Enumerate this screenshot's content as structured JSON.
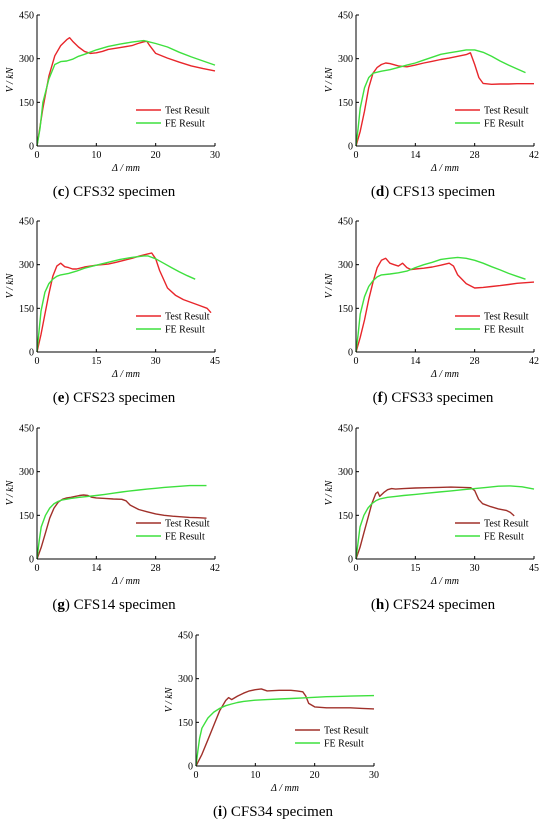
{
  "colors": {
    "test_red": "#e8262b",
    "test_brown": "#a0302a",
    "fe": "#3ee03e",
    "axis": "#000000"
  },
  "chart_data": [
    {
      "type": "line",
      "caption_letter": "c",
      "caption_text": " CFS32 specimen",
      "xlabel": "Δ / mm",
      "ylabel": "V / kN",
      "xlim": [
        0,
        30
      ],
      "ylim": [
        0,
        450
      ],
      "xticks": [
        0,
        10,
        20,
        30
      ],
      "yticks": [
        0,
        150,
        300,
        450
      ],
      "test_color": "test_red",
      "series": [
        {
          "name": "Test Result",
          "color_key": "test_red",
          "x": [
            0,
            1,
            2,
            3,
            4,
            5,
            5.5,
            6,
            7,
            8,
            9,
            10,
            11,
            12,
            14,
            16,
            17,
            18,
            18.5,
            19,
            20,
            22,
            24,
            26,
            28,
            30
          ],
          "y": [
            0,
            130,
            240,
            310,
            345,
            365,
            372,
            360,
            340,
            325,
            318,
            320,
            325,
            332,
            338,
            345,
            352,
            358,
            360,
            345,
            318,
            302,
            288,
            275,
            266,
            258
          ]
        },
        {
          "name": "FE Result",
          "color_key": "fe",
          "x": [
            0,
            0.5,
            1,
            2,
            3,
            4,
            5,
            6,
            7,
            8,
            10,
            12,
            14,
            16,
            18,
            20,
            22,
            24,
            26,
            28,
            30
          ],
          "y": [
            0,
            60,
            150,
            230,
            280,
            290,
            292,
            298,
            308,
            315,
            330,
            342,
            350,
            357,
            362,
            352,
            340,
            322,
            306,
            292,
            278
          ]
        }
      ]
    },
    {
      "type": "line",
      "caption_letter": "d",
      "caption_text": " CFS13 specimen",
      "xlabel": "Δ / mm",
      "ylabel": "V / kN",
      "xlim": [
        0,
        42
      ],
      "ylim": [
        0,
        450
      ],
      "xticks": [
        0,
        14,
        28,
        42
      ],
      "yticks": [
        0,
        150,
        300,
        450
      ],
      "test_color": "test_red",
      "series": [
        {
          "name": "Test Result",
          "color_key": "test_red",
          "x": [
            0,
            1,
            2,
            3,
            4,
            5,
            6,
            7,
            8,
            10,
            12,
            14,
            16,
            18,
            20,
            22,
            24,
            26,
            27,
            28,
            29,
            30,
            32,
            34,
            36,
            38,
            42
          ],
          "y": [
            0,
            50,
            120,
            200,
            250,
            270,
            280,
            285,
            283,
            275,
            272,
            278,
            285,
            291,
            297,
            302,
            308,
            314,
            320,
            280,
            235,
            215,
            212,
            213,
            213,
            214,
            214
          ]
        },
        {
          "name": "FE Result",
          "color_key": "fe",
          "x": [
            0,
            0.5,
            1,
            2,
            3,
            4,
            6,
            8,
            10,
            12,
            14,
            16,
            18,
            20,
            22,
            24,
            26,
            28,
            30,
            32,
            34,
            36,
            38,
            40
          ],
          "y": [
            0,
            60,
            130,
            200,
            235,
            250,
            257,
            262,
            270,
            278,
            285,
            295,
            305,
            315,
            320,
            325,
            330,
            330,
            322,
            308,
            292,
            278,
            265,
            252
          ]
        }
      ]
    },
    {
      "type": "line",
      "caption_letter": "e",
      "caption_text": " CFS23 specimen",
      "xlabel": "Δ / mm",
      "ylabel": "V / kN",
      "xlim": [
        0,
        45
      ],
      "ylim": [
        0,
        450
      ],
      "xticks": [
        0,
        15,
        30,
        45
      ],
      "yticks": [
        0,
        150,
        300,
        450
      ],
      "test_color": "test_red",
      "series": [
        {
          "name": "Test Result",
          "color_key": "test_red",
          "x": [
            0,
            1,
            2,
            3,
            4,
            5,
            6,
            7,
            8,
            9,
            10,
            12,
            15,
            18,
            20,
            22,
            24,
            26,
            28,
            29,
            30,
            31,
            33,
            35,
            37,
            39,
            41,
            43,
            44
          ],
          "y": [
            0,
            60,
            130,
            200,
            260,
            295,
            305,
            293,
            290,
            285,
            285,
            292,
            298,
            302,
            308,
            315,
            322,
            330,
            337,
            340,
            320,
            280,
            220,
            195,
            180,
            170,
            160,
            150,
            135
          ]
        },
        {
          "name": "FE Result",
          "color_key": "fe",
          "x": [
            0,
            0.5,
            1,
            2,
            3,
            4,
            5,
            6,
            8,
            10,
            12,
            15,
            18,
            21,
            24,
            27,
            28,
            30,
            32,
            34,
            36,
            38,
            40
          ],
          "y": [
            0,
            70,
            140,
            205,
            235,
            250,
            260,
            265,
            270,
            278,
            288,
            298,
            308,
            318,
            325,
            330,
            330,
            320,
            305,
            290,
            275,
            262,
            250
          ]
        }
      ]
    },
    {
      "type": "line",
      "caption_letter": "f",
      "caption_text": " CFS33 specimen",
      "xlabel": "Δ / mm",
      "ylabel": "V / kN",
      "xlim": [
        0,
        42
      ],
      "ylim": [
        0,
        450
      ],
      "xticks": [
        0,
        14,
        28,
        42
      ],
      "yticks": [
        0,
        150,
        300,
        450
      ],
      "test_color": "test_red",
      "series": [
        {
          "name": "Test Result",
          "color_key": "test_red",
          "x": [
            0,
            1,
            2,
            3,
            4,
            5,
            6,
            7,
            8,
            9,
            10,
            11,
            12,
            13,
            14,
            16,
            18,
            20,
            22,
            23,
            24,
            26,
            28,
            30,
            32,
            34,
            36,
            38,
            40,
            42
          ],
          "y": [
            0,
            50,
            110,
            180,
            240,
            290,
            315,
            322,
            305,
            300,
            295,
            305,
            290,
            283,
            285,
            288,
            292,
            298,
            305,
            295,
            265,
            235,
            220,
            222,
            225,
            228,
            232,
            236,
            238,
            240
          ]
        },
        {
          "name": "FE Result",
          "color_key": "fe",
          "x": [
            0,
            0.5,
            1,
            2,
            3,
            4,
            5,
            6,
            8,
            10,
            12,
            14,
            16,
            18,
            20,
            22,
            24,
            26,
            28,
            30,
            32,
            34,
            36,
            38,
            40
          ],
          "y": [
            0,
            60,
            130,
            190,
            225,
            245,
            258,
            265,
            268,
            272,
            278,
            290,
            300,
            308,
            318,
            322,
            325,
            322,
            315,
            305,
            293,
            282,
            270,
            260,
            250
          ]
        }
      ]
    },
    {
      "type": "line",
      "caption_letter": "g",
      "caption_text": " CFS14 specimen",
      "xlabel": "Δ / mm",
      "ylabel": "V / kN",
      "xlim": [
        0,
        42
      ],
      "ylim": [
        0,
        450
      ],
      "xticks": [
        0,
        14,
        28,
        42
      ],
      "yticks": [
        0,
        150,
        300,
        450
      ],
      "test_color": "test_brown",
      "series": [
        {
          "name": "Test Result",
          "color_key": "test_brown",
          "x": [
            0,
            1,
            2,
            3,
            4,
            5,
            6,
            7,
            8,
            9,
            10,
            11,
            12,
            13,
            14,
            16,
            18,
            20,
            21,
            22,
            24,
            26,
            28,
            30,
            32,
            34,
            36,
            38,
            40
          ],
          "y": [
            0,
            40,
            90,
            140,
            175,
            195,
            205,
            210,
            212,
            215,
            218,
            220,
            218,
            212,
            210,
            208,
            206,
            205,
            200,
            185,
            170,
            162,
            155,
            150,
            147,
            145,
            143,
            142,
            140
          ]
        },
        {
          "name": "FE Result",
          "color_key": "fe",
          "x": [
            0,
            0.5,
            1,
            2,
            3,
            4,
            5,
            6,
            8,
            10,
            12,
            14,
            16,
            18,
            20,
            22,
            24,
            26,
            28,
            30,
            32,
            34,
            36,
            38,
            40
          ],
          "y": [
            0,
            60,
            110,
            150,
            175,
            190,
            198,
            203,
            208,
            212,
            215,
            218,
            222,
            226,
            230,
            234,
            237,
            240,
            243,
            246,
            248,
            250,
            252,
            252,
            252
          ]
        }
      ]
    },
    {
      "type": "line",
      "caption_letter": "h",
      "caption_text": " CFS24 specimen",
      "xlabel": "Δ / mm",
      "ylabel": "V / kN",
      "xlim": [
        0,
        45
      ],
      "ylim": [
        0,
        450
      ],
      "xticks": [
        0,
        15,
        30,
        45
      ],
      "yticks": [
        0,
        150,
        300,
        450
      ],
      "test_color": "test_brown",
      "series": [
        {
          "name": "Test Result",
          "color_key": "test_brown",
          "x": [
            0,
            1,
            2,
            3,
            4,
            5,
            5.5,
            6,
            7,
            8,
            9,
            10,
            12,
            15,
            18,
            21,
            24,
            27,
            29,
            30,
            31,
            32,
            34,
            36,
            38,
            39,
            40
          ],
          "y": [
            0,
            40,
            90,
            140,
            190,
            225,
            230,
            215,
            228,
            238,
            242,
            240,
            242,
            244,
            245,
            246,
            247,
            246,
            245,
            235,
            205,
            190,
            180,
            172,
            167,
            160,
            148
          ]
        },
        {
          "name": "FE Result",
          "color_key": "fe",
          "x": [
            0,
            0.5,
            1,
            2,
            3,
            4,
            5,
            6,
            8,
            10,
            12,
            15,
            18,
            21,
            24,
            27,
            30,
            33,
            36,
            39,
            42,
            45
          ],
          "y": [
            0,
            55,
            110,
            150,
            175,
            190,
            200,
            206,
            212,
            215,
            218,
            222,
            226,
            230,
            234,
            238,
            242,
            246,
            250,
            251,
            248,
            240
          ]
        }
      ]
    },
    {
      "type": "line",
      "caption_letter": "i",
      "caption_text": " CFS34 specimen",
      "xlabel": "Δ / mm",
      "ylabel": "V / kN",
      "xlim": [
        0,
        30
      ],
      "ylim": [
        0,
        450
      ],
      "xticks": [
        0,
        10,
        20,
        30
      ],
      "yticks": [
        0,
        150,
        300,
        450
      ],
      "test_color": "test_brown",
      "series": [
        {
          "name": "Test Result",
          "color_key": "test_brown",
          "x": [
            0,
            1,
            2,
            3,
            4,
            5,
            5.5,
            6,
            7,
            8,
            9,
            10,
            11,
            12,
            14,
            16,
            17,
            18,
            18.5,
            19,
            20,
            22,
            24,
            26,
            28,
            30
          ],
          "y": [
            0,
            40,
            90,
            140,
            190,
            225,
            235,
            228,
            240,
            250,
            258,
            262,
            265,
            258,
            260,
            260,
            258,
            255,
            240,
            215,
            203,
            200,
            200,
            200,
            198,
            196
          ]
        },
        {
          "name": "FE Result",
          "color_key": "fe",
          "x": [
            0,
            0.3,
            0.6,
            1,
            2,
            3,
            4,
            5,
            6,
            7,
            8,
            10,
            12,
            14,
            16,
            18,
            20,
            22,
            24,
            26,
            28,
            30
          ],
          "y": [
            0,
            50,
            95,
            130,
            165,
            185,
            198,
            207,
            213,
            218,
            222,
            226,
            228,
            230,
            232,
            234,
            236,
            238,
            239,
            240,
            241,
            242
          ]
        }
      ]
    }
  ]
}
